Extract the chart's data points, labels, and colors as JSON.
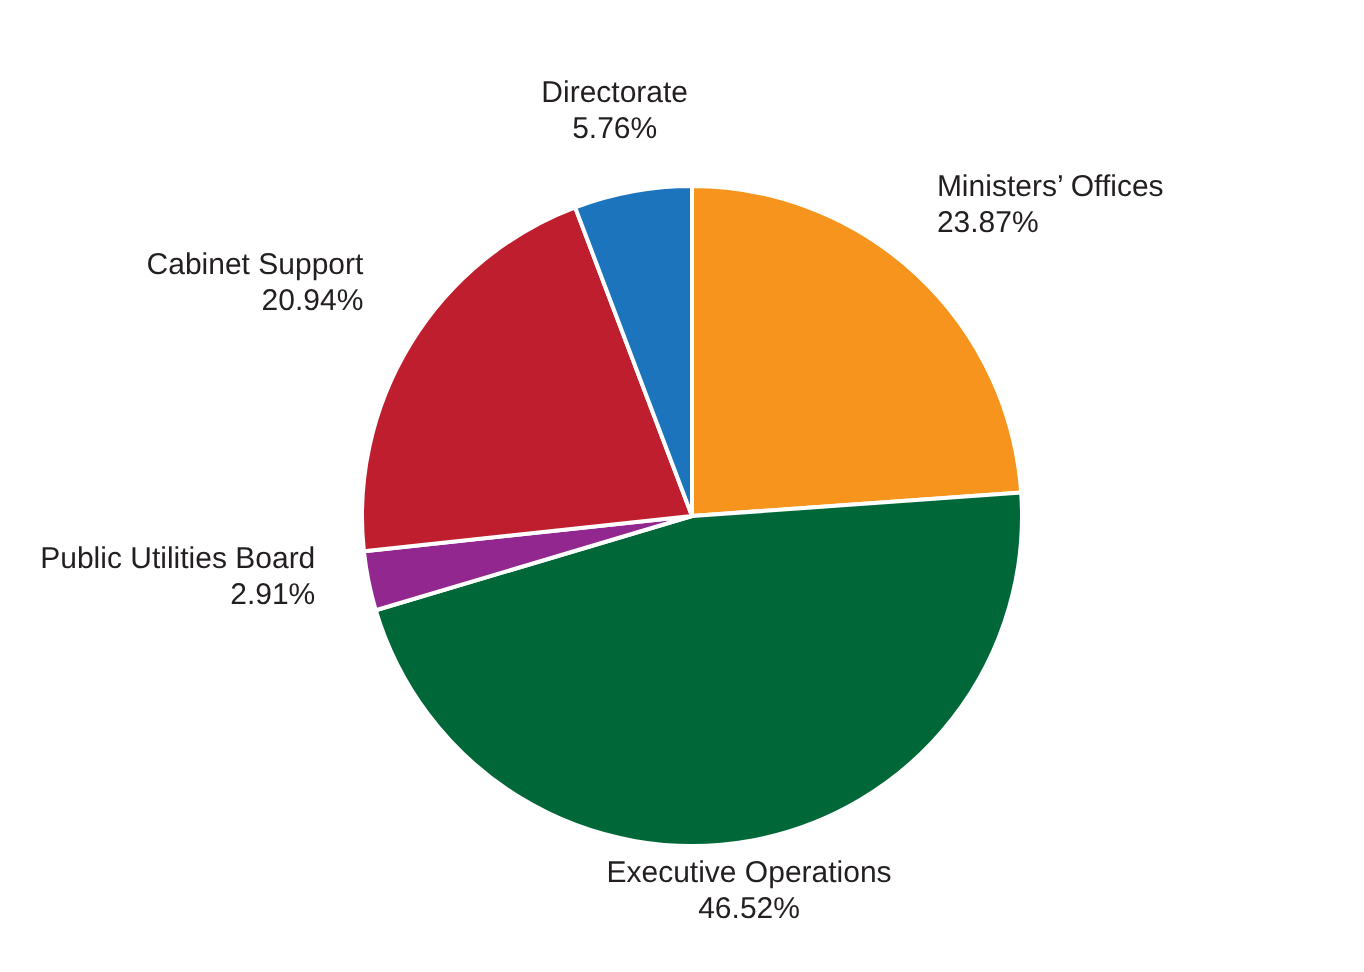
{
  "chart_data": {
    "type": "pie",
    "categories": [
      "Ministers’ Offices",
      "Executive Operations",
      "Public Utilities Board",
      "Cabinet Support",
      "Directorate"
    ],
    "values": [
      23.87,
      46.52,
      2.91,
      20.94,
      5.76
    ],
    "colors": [
      "#f7941d",
      "#006838",
      "#92278f",
      "#be1e2d",
      "#1c75bc"
    ],
    "value_labels": [
      "23.87%",
      "46.52%",
      "2.91%",
      "20.94%",
      "5.76%"
    ],
    "legend": false
  }
}
